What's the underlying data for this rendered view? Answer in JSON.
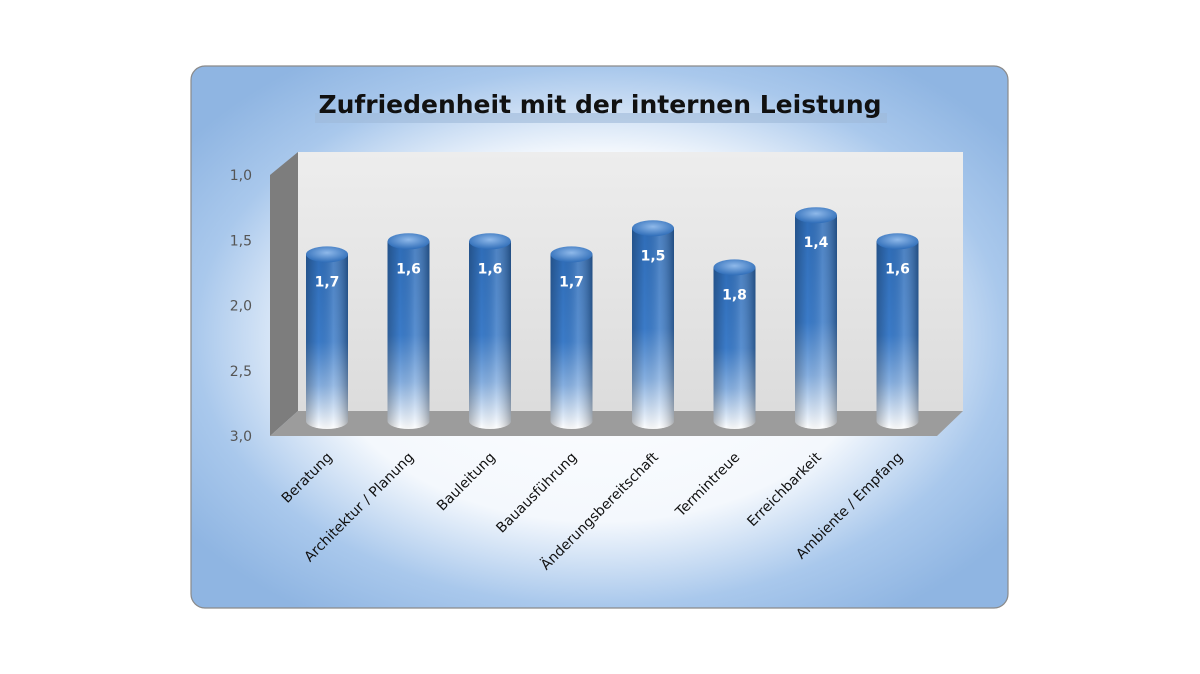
{
  "chart_data": {
    "type": "bar",
    "title": "Zufriedenheit mit der internen Leistung",
    "categories": [
      "Beratung",
      "Architektur / Planung",
      "Bauleitung",
      "Bauausführung",
      "Änderungsbereitschaft",
      "Termintreue",
      "Erreichbarkeit",
      "Ambiente / Empfang"
    ],
    "values": [
      1.7,
      1.6,
      1.6,
      1.7,
      1.5,
      1.8,
      1.4,
      1.6
    ],
    "value_labels": [
      "1,7",
      "1,6",
      "1,6",
      "1,7",
      "1,5",
      "1,8",
      "1,4",
      "1,6"
    ],
    "y_ticks": [
      "1,0",
      "1,5",
      "2,0",
      "2,5",
      "3,0"
    ],
    "ylim": [
      1.0,
      3.0
    ],
    "y_reversed": true,
    "xlabel": "",
    "ylabel": "",
    "grid": false,
    "style": "3d-cylinder",
    "colors": {
      "bar_top": "#2f6db8",
      "bar_mid": "#4a88d0",
      "bar_bottom": "#ffffff",
      "frame_border": "#888888",
      "wall": "#e6e6e6",
      "floor": "#9a9a9a",
      "side_wall": "#7a7a7a"
    }
  }
}
